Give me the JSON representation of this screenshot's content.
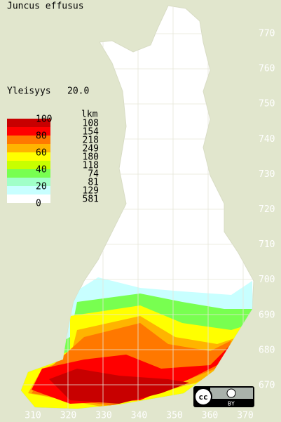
{
  "title": "Juncus effusus",
  "frequency": {
    "label": "Yleisyys",
    "value": "20.0"
  },
  "legend": {
    "count_header": "lkm",
    "scale_labels": [
      "100",
      "80",
      "60",
      "40",
      "20",
      "0"
    ],
    "classes": [
      {
        "color": "#c80000",
        "count": "108"
      },
      {
        "color": "#ff0000",
        "count": "154"
      },
      {
        "color": "#ff7800",
        "count": "218"
      },
      {
        "color": "#ffb400",
        "count": "249"
      },
      {
        "color": "#ffff00",
        "count": "180"
      },
      {
        "color": "#c8ff00",
        "count": "118"
      },
      {
        "color": "#78ff50",
        "count": "74"
      },
      {
        "color": "#a0ffc8",
        "count": "81"
      },
      {
        "color": "#c8ffff",
        "count": "129"
      },
      {
        "color": "#ffffff",
        "count": "581"
      }
    ]
  },
  "y_axis": [
    "770",
    "760",
    "750",
    "740",
    "730",
    "720",
    "710",
    "700",
    "690",
    "680",
    "670"
  ],
  "x_axis": [
    "310",
    "320",
    "330",
    "340",
    "350",
    "360",
    "370"
  ],
  "license_badge": {
    "symbol": "cc",
    "attribution": "BY"
  }
}
